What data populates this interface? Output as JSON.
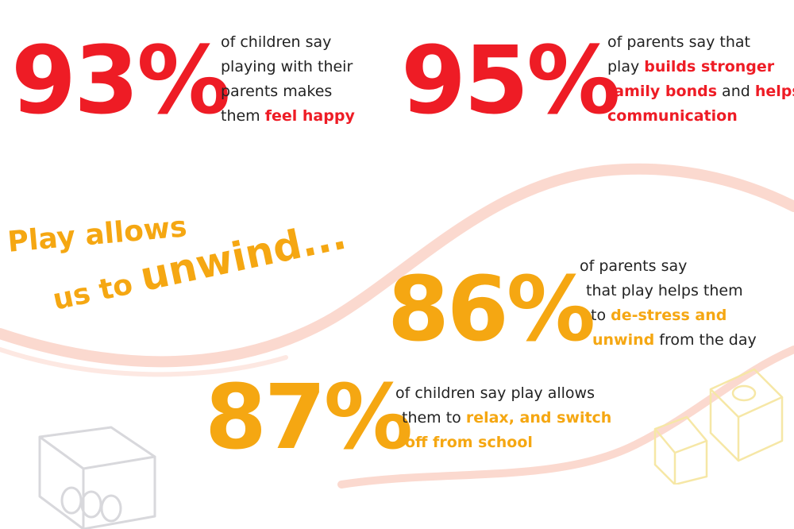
{
  "stats": [
    {
      "value": "93%",
      "lines": [
        [
          {
            "t": "of children say",
            "h": false
          }
        ],
        [
          {
            "t": "playing with their",
            "h": false
          }
        ],
        [
          {
            "t": "parents makes",
            "h": false
          }
        ],
        [
          {
            "t": "them ",
            "h": false
          },
          {
            "t": "feel happy",
            "h": true
          }
        ]
      ]
    },
    {
      "value": "95%",
      "lines": [
        [
          {
            "t": "of parents say that",
            "h": false
          }
        ],
        [
          {
            "t": "play ",
            "h": false
          },
          {
            "t": "builds stronger",
            "h": true
          }
        ],
        [
          {
            "t": "family bonds",
            "h": true
          },
          {
            "t": " and ",
            "h": false
          },
          {
            "t": "helps",
            "h": true
          }
        ],
        [
          {
            "t": "communication",
            "h": true
          }
        ]
      ]
    },
    {
      "value": "86%",
      "lines": [
        [
          {
            "t": "of parents say",
            "h": false
          }
        ],
        [
          {
            "t": "that play helps them",
            "h": false
          }
        ],
        [
          {
            "t": "to ",
            "h": false
          },
          {
            "t": "de-stress and",
            "h": true
          }
        ],
        [
          {
            "t": "unwind",
            "h": true
          },
          {
            "t": " from the day",
            "h": false
          }
        ]
      ]
    },
    {
      "value": "87%",
      "lines": [
        [
          {
            "t": "of children say play allows",
            "h": false
          }
        ],
        [
          {
            "t": "them to ",
            "h": false
          },
          {
            "t": "relax, and switch",
            "h": true
          }
        ],
        [
          {
            "t": "off from school",
            "h": true
          }
        ]
      ]
    }
  ],
  "headline": {
    "line1": "Play allows",
    "line2_prefix": "us to",
    "line2_emph": "unwind..."
  },
  "colors": {
    "red": "#ee1c25",
    "orange": "#f5a712",
    "wave": "#fbd9cf",
    "brick": "#d8d8dc",
    "brick_yellow": "#f6e7a6"
  },
  "icons": [
    "toy-brick-icon",
    "toy-brick-small-icon"
  ]
}
